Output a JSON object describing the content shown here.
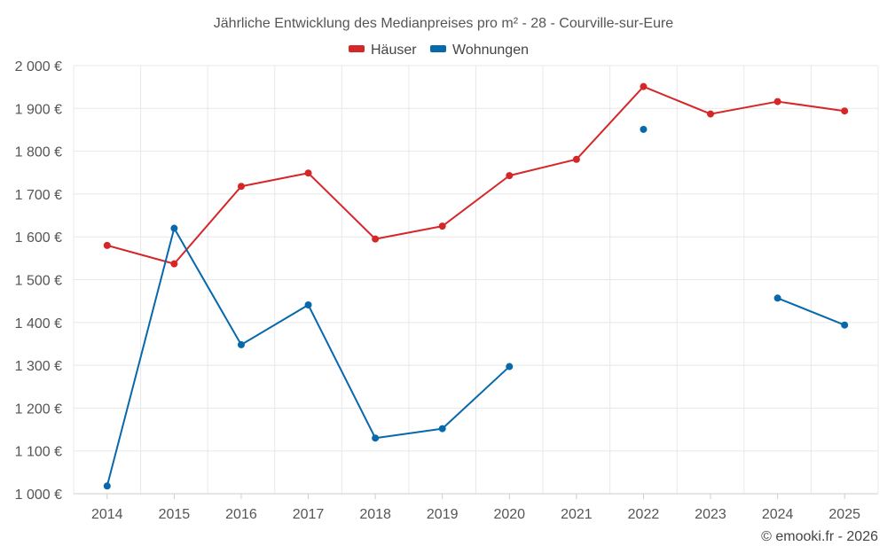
{
  "chart_data": {
    "type": "line",
    "title": "Jährliche Entwicklung des Medianpreises pro m² - 28 - Courville-sur-Eure",
    "categories": [
      "2014",
      "2015",
      "2016",
      "2017",
      "2018",
      "2019",
      "2020",
      "2021",
      "2022",
      "2023",
      "2024",
      "2025"
    ],
    "ylim": [
      1000,
      2000
    ],
    "yticks": [
      1000,
      1100,
      1200,
      1300,
      1400,
      1500,
      1600,
      1700,
      1800,
      1900,
      2000
    ],
    "ytick_labels": [
      "1 000 €",
      "1 100 €",
      "1 200 €",
      "1 300 €",
      "1 400 €",
      "1 500 €",
      "1 600 €",
      "1 700 €",
      "1 800 €",
      "1 900 €",
      "2 000 €"
    ],
    "grid": true,
    "legend_position": "top-center",
    "series": [
      {
        "name": "Häuser",
        "color": "#d62728",
        "values": [
          1580,
          1537,
          1718,
          1749,
          1595,
          1625,
          1743,
          1781,
          1951,
          1887,
          1916,
          1894
        ]
      },
      {
        "name": "Wohnungen",
        "color": "#0868ac",
        "values": [
          1018,
          1620,
          1348,
          1441,
          1130,
          1152,
          1297,
          null,
          1851,
          null,
          1457,
          1394
        ]
      }
    ],
    "credit": "© emooki.fr - 2026"
  }
}
